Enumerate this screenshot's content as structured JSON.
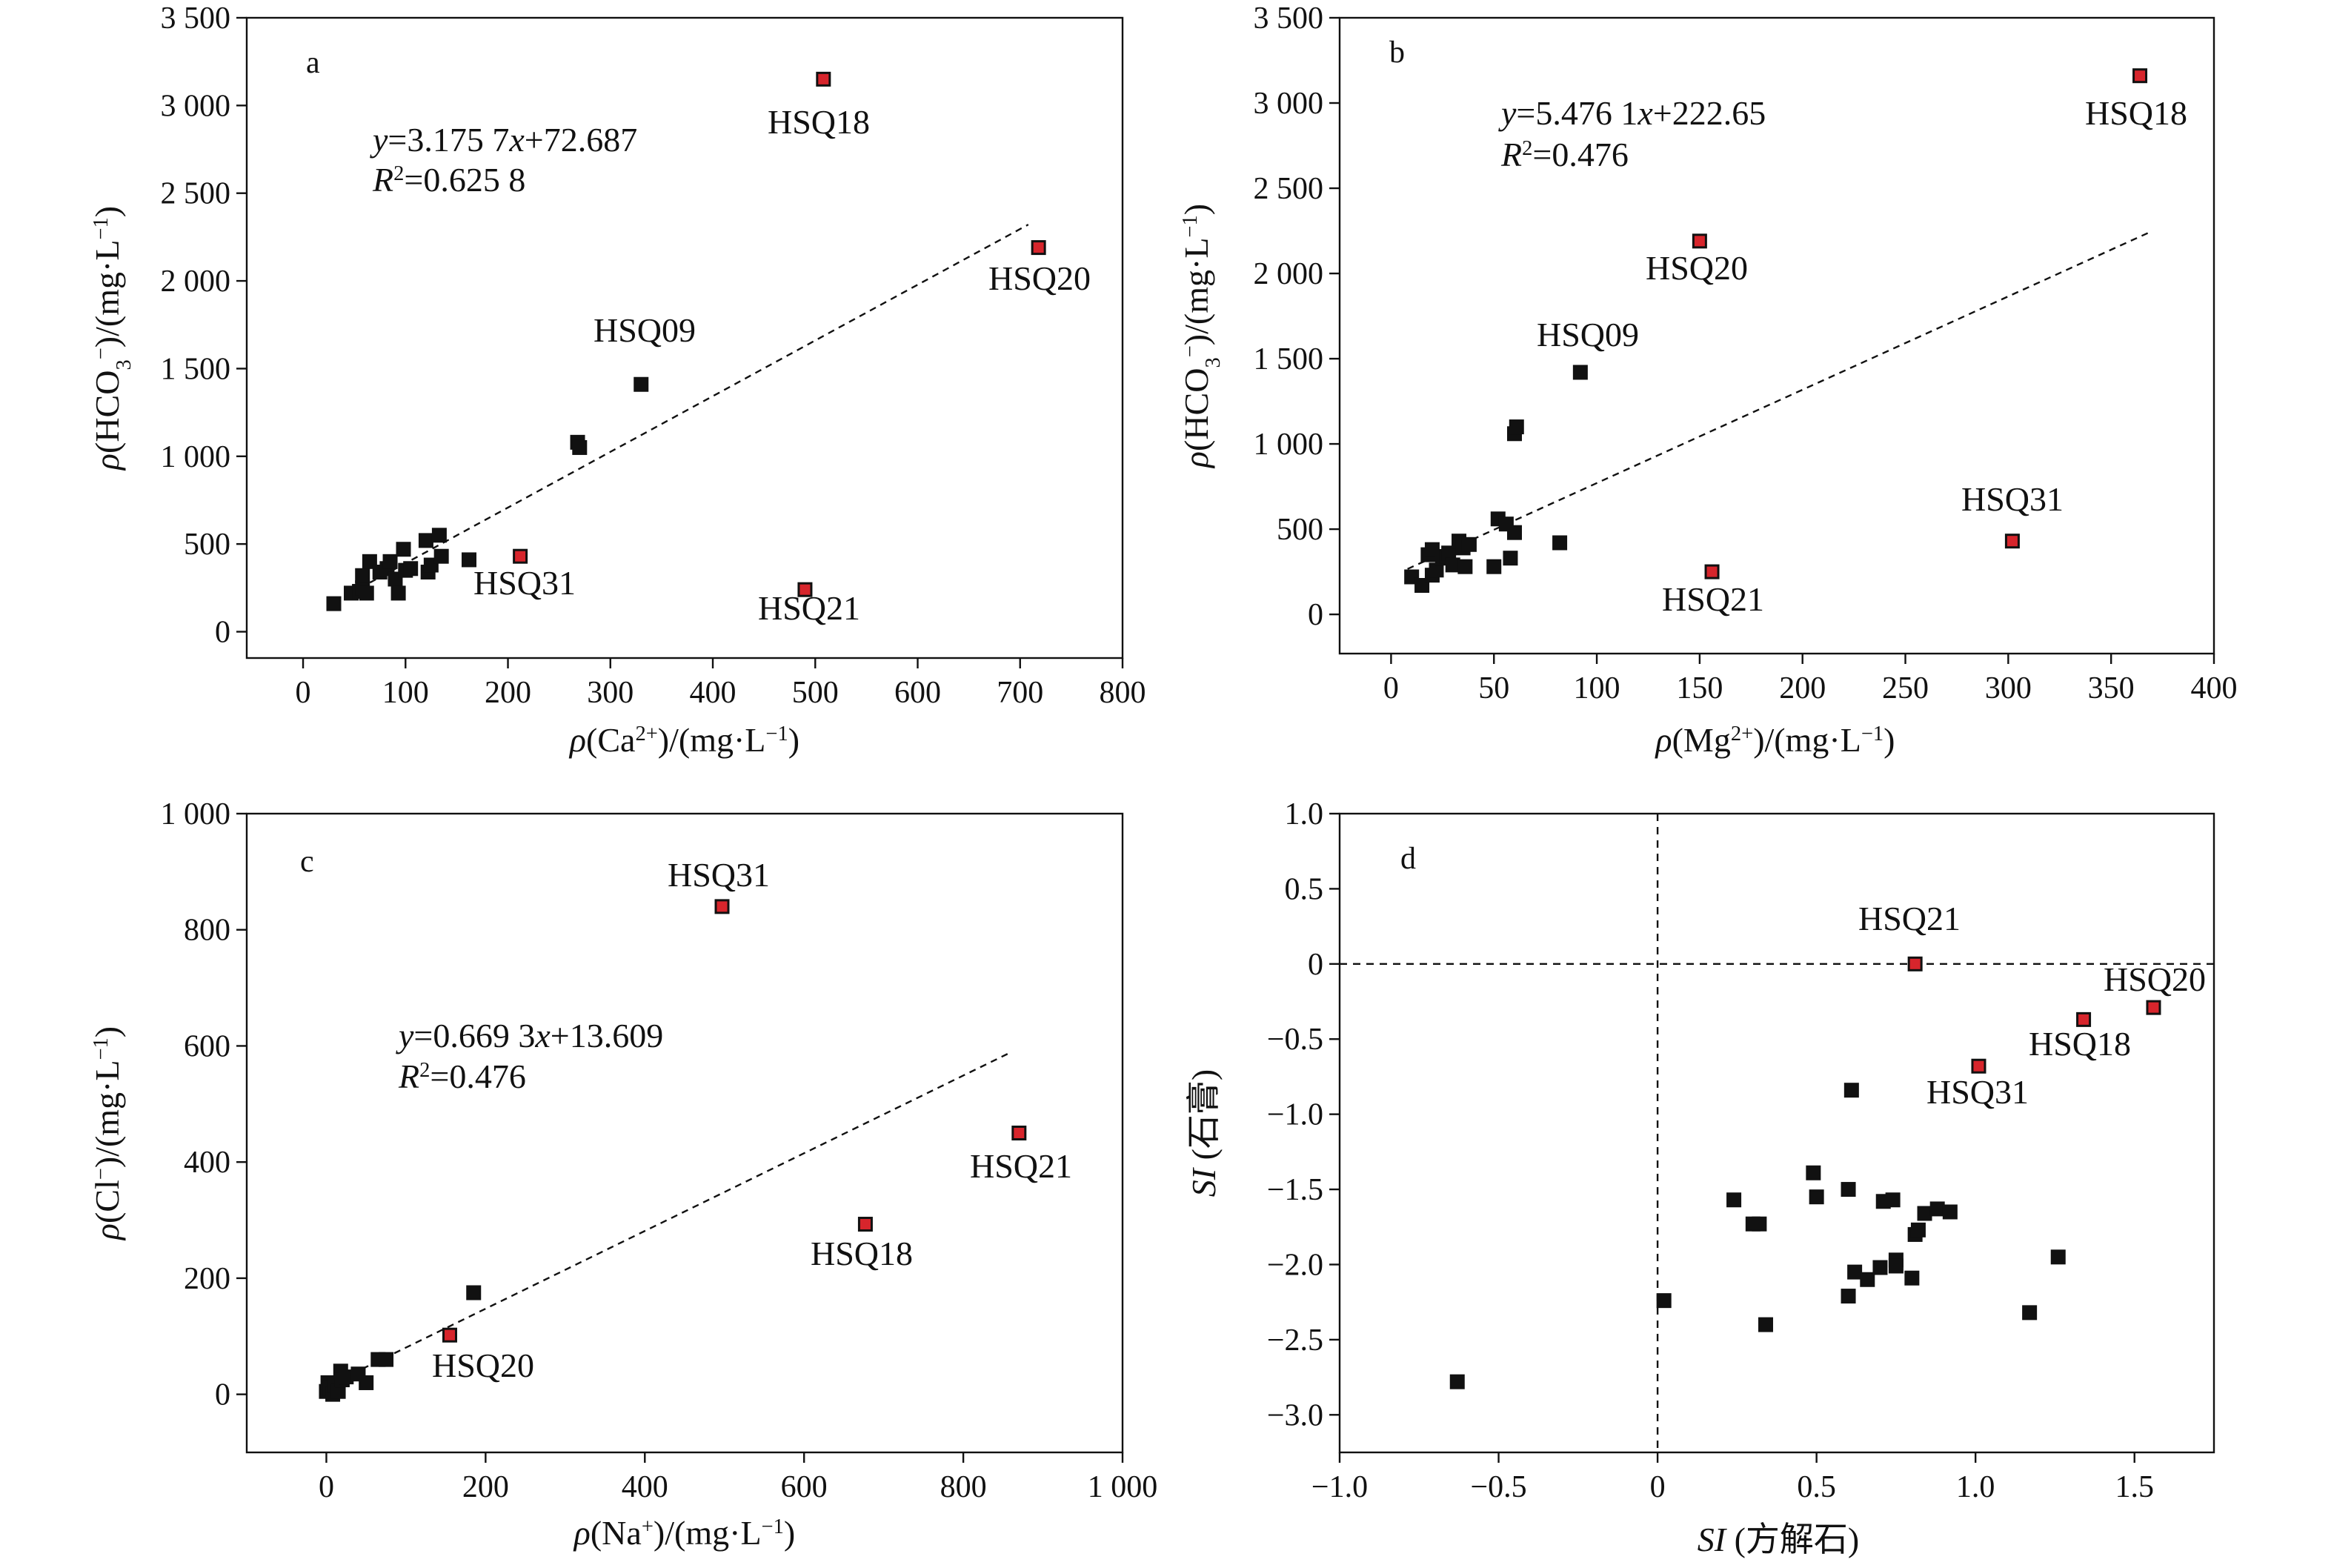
{
  "chart_data": [
    {
      "type": "scatter",
      "panel": "a",
      "xlabel_parts": [
        {
          "t": "ρ",
          "i": true
        },
        {
          "t": "(Ca"
        },
        {
          "t": "2+",
          "sup": true
        },
        {
          "t": ")/(mg·L"
        },
        {
          "t": "−1",
          "sup": true
        },
        {
          "t": ")"
        }
      ],
      "ylabel_parts": [
        {
          "t": "ρ",
          "i": true
        },
        {
          "t": "(HCO"
        },
        {
          "t": "3",
          "sub": true
        },
        {
          "t": "−",
          "sup": true
        },
        {
          "t": ")/(mg·L"
        },
        {
          "t": "−1",
          "sup": true
        },
        {
          "t": ")"
        }
      ],
      "xlim": [
        -55,
        800
      ],
      "ylim": [
        -150,
        3500
      ],
      "xticks": [
        0,
        100,
        200,
        300,
        400,
        500,
        600,
        700,
        800
      ],
      "xticklabels": [
        "0",
        "100",
        "200",
        "300",
        "400",
        "500",
        "600",
        "700",
        "800"
      ],
      "yticks": [
        0,
        500,
        1000,
        1500,
        2000,
        2500,
        3000,
        3500
      ],
      "yticklabels": [
        "0",
        "500",
        "1 000",
        "1 500",
        "2 000",
        "2 500",
        "3 000",
        "3 500"
      ],
      "equation_parts": [
        {
          "t": "y",
          "i": true
        },
        {
          "t": "=3.175 7"
        },
        {
          "t": "x",
          "i": true
        },
        {
          "t": "+72.687"
        }
      ],
      "r2_parts": [
        {
          "t": "R",
          "i": true
        },
        {
          "t": "2",
          "sup": true
        },
        {
          "t": "=0.625 8"
        }
      ],
      "fit": {
        "slope": 3.1757,
        "intercept": 72.687,
        "x_range": [
          45,
          708
        ]
      },
      "black_points": [
        [
          30,
          160
        ],
        [
          47,
          220
        ],
        [
          55,
          230
        ],
        [
          58,
          250
        ],
        [
          58,
          320
        ],
        [
          62,
          220
        ],
        [
          65,
          400
        ],
        [
          75,
          340
        ],
        [
          82,
          360
        ],
        [
          85,
          400
        ],
        [
          90,
          300
        ],
        [
          93,
          220
        ],
        [
          98,
          470
        ],
        [
          100,
          350
        ],
        [
          105,
          360
        ],
        [
          120,
          520
        ],
        [
          122,
          340
        ],
        [
          125,
          380
        ],
        [
          133,
          550
        ],
        [
          135,
          430
        ],
        [
          162,
          410
        ],
        [
          268,
          1080
        ],
        [
          270,
          1050
        ],
        [
          330,
          1410
        ]
      ],
      "red_points": [
        {
          "label": "HSQ18",
          "x": 508,
          "y": 3150
        },
        {
          "label": "HSQ20",
          "x": 718,
          "y": 2190
        },
        {
          "label": "HSQ31",
          "x": 212,
          "y": 430
        },
        {
          "label": "HSQ21",
          "x": 490,
          "y": 240
        }
      ],
      "black_labels": [
        {
          "label": "HSQ09",
          "x": 330,
          "y": 1410
        }
      ]
    },
    {
      "type": "scatter",
      "panel": "b",
      "xlabel_parts": [
        {
          "t": "ρ",
          "i": true
        },
        {
          "t": "(Mg"
        },
        {
          "t": "2+",
          "sup": true
        },
        {
          "t": ")/(mg·L"
        },
        {
          "t": "−1",
          "sup": true
        },
        {
          "t": ")"
        }
      ],
      "ylabel_parts": [
        {
          "t": "ρ",
          "i": true
        },
        {
          "t": "(HCO"
        },
        {
          "t": "3",
          "sub": true
        },
        {
          "t": "−",
          "sup": true
        },
        {
          "t": ")/(mg·L"
        },
        {
          "t": "−1",
          "sup": true
        },
        {
          "t": ")"
        }
      ],
      "xlim": [
        -25,
        400
      ],
      "ylim": [
        -230,
        3500
      ],
      "xticks": [
        0,
        50,
        100,
        150,
        200,
        250,
        300,
        350,
        400
      ],
      "xticklabels": [
        "0",
        "50",
        "100",
        "150",
        "200",
        "250",
        "300",
        "350",
        "400"
      ],
      "yticks": [
        0,
        500,
        1000,
        1500,
        2000,
        2500,
        3000,
        3500
      ],
      "yticklabels": [
        "0",
        "500",
        "1 000",
        "1 500",
        "2 000",
        "2 500",
        "3 000",
        "3 500"
      ],
      "equation_parts": [
        {
          "t": "y",
          "i": true
        },
        {
          "t": "=5.476 1"
        },
        {
          "t": "x",
          "i": true
        },
        {
          "t": "+222.65"
        }
      ],
      "r2_parts": [
        {
          "t": "R",
          "i": true
        },
        {
          "t": "2",
          "sup": true
        },
        {
          "t": "=0.476"
        }
      ],
      "fit": {
        "slope": 5.4761,
        "intercept": 222.65,
        "x_range": [
          8,
          370
        ]
      },
      "black_points": [
        [
          10,
          220
        ],
        [
          15,
          170
        ],
        [
          18,
          350
        ],
        [
          20,
          230
        ],
        [
          20,
          380
        ],
        [
          22,
          260
        ],
        [
          25,
          330
        ],
        [
          27,
          340
        ],
        [
          28,
          360
        ],
        [
          30,
          290
        ],
        [
          33,
          430
        ],
        [
          35,
          390
        ],
        [
          36,
          280
        ],
        [
          38,
          410
        ],
        [
          50,
          280
        ],
        [
          52,
          560
        ],
        [
          56,
          530
        ],
        [
          58,
          330
        ],
        [
          60,
          480
        ],
        [
          60,
          1060
        ],
        [
          61,
          1100
        ],
        [
          82,
          420
        ],
        [
          92,
          1420
        ]
      ],
      "red_points": [
        {
          "label": "HSQ18",
          "x": 364,
          "y": 3160
        },
        {
          "label": "HSQ20",
          "x": 150,
          "y": 2190
        },
        {
          "label": "HSQ31",
          "x": 302,
          "y": 430
        },
        {
          "label": "HSQ21",
          "x": 156,
          "y": 250
        }
      ],
      "black_labels": [
        {
          "label": "HSQ09",
          "x": 92,
          "y": 1420
        }
      ]
    },
    {
      "type": "scatter",
      "panel": "c",
      "xlabel_parts": [
        {
          "t": "ρ",
          "i": true
        },
        {
          "t": "(Na"
        },
        {
          "t": "+",
          "sup": true
        },
        {
          "t": ")/(mg·L"
        },
        {
          "t": "−1",
          "sup": true
        },
        {
          "t": ")"
        }
      ],
      "ylabel_parts": [
        {
          "t": "ρ",
          "i": true
        },
        {
          "t": "(Cl"
        },
        {
          "t": "−",
          "sup": true
        },
        {
          "t": ")/(mg·L"
        },
        {
          "t": "−1",
          "sup": true
        },
        {
          "t": ")"
        }
      ],
      "xlim": [
        -100,
        1000
      ],
      "ylim": [
        -100,
        1000
      ],
      "xticks": [
        0,
        200,
        400,
        600,
        800,
        1000
      ],
      "xticklabels": [
        "0",
        "200",
        "400",
        "600",
        "800",
        "1 000"
      ],
      "yticks": [
        0,
        200,
        400,
        600,
        800,
        1000
      ],
      "yticklabels": [
        "0",
        "200",
        "400",
        "600",
        "800",
        "1 000"
      ],
      "equation_parts": [
        {
          "t": "y",
          "i": true
        },
        {
          "t": "=0.669 3"
        },
        {
          "t": "x",
          "i": true
        },
        {
          "t": "+13.609"
        }
      ],
      "r2_parts": [
        {
          "t": "R",
          "i": true
        },
        {
          "t": "2",
          "sup": true
        },
        {
          "t": "=0.476"
        }
      ],
      "fit": {
        "slope": 0.6693,
        "intercept": 13.609,
        "x_range": [
          5,
          858
        ]
      },
      "black_points": [
        [
          0,
          5
        ],
        [
          2,
          20
        ],
        [
          5,
          10
        ],
        [
          8,
          0
        ],
        [
          10,
          15
        ],
        [
          15,
          5
        ],
        [
          18,
          40
        ],
        [
          20,
          25
        ],
        [
          25,
          30
        ],
        [
          40,
          35
        ],
        [
          50,
          20
        ],
        [
          65,
          60
        ],
        [
          75,
          60
        ],
        [
          185,
          175
        ]
      ],
      "red_points": [
        {
          "label": "HSQ31",
          "x": 497,
          "y": 840
        },
        {
          "label": "HSQ21",
          "x": 870,
          "y": 450
        },
        {
          "label": "HSQ18",
          "x": 677,
          "y": 293
        },
        {
          "label": "HSQ20",
          "x": 155,
          "y": 102
        }
      ],
      "black_labels": []
    },
    {
      "type": "scatter",
      "panel": "d",
      "xlabel_parts": [
        {
          "t": "SI",
          "i": true
        },
        {
          "t": " (方解石)"
        }
      ],
      "ylabel_parts": [
        {
          "t": "SI",
          "i": true
        },
        {
          "t": " (石膏)"
        }
      ],
      "xlim": [
        -1.0,
        1.75
      ],
      "ylim": [
        -3.25,
        1.0
      ],
      "xticks": [
        -1.0,
        -0.5,
        0,
        0.5,
        1.0,
        1.5
      ],
      "xticklabels": [
        "−1.0",
        "−0.5",
        "0",
        "0.5",
        "1.0",
        "1.5"
      ],
      "yticks": [
        -3.0,
        -2.5,
        -2.0,
        -1.5,
        -1.0,
        -0.5,
        0,
        0.5,
        1.0
      ],
      "yticklabels": [
        "−3.0",
        "−2.5",
        "−2.0",
        "−1.5",
        "−1.0",
        "−0.5",
        "0",
        "0.5",
        "1.0"
      ],
      "reference_lines": {
        "x": 0,
        "y": 0
      },
      "black_points": [
        [
          -0.63,
          -2.78
        ],
        [
          0.02,
          -2.24
        ],
        [
          0.24,
          -1.57
        ],
        [
          0.3,
          -1.73
        ],
        [
          0.32,
          -1.73
        ],
        [
          0.34,
          -2.4
        ],
        [
          0.49,
          -1.39
        ],
        [
          0.5,
          -1.55
        ],
        [
          0.6,
          -1.5
        ],
        [
          0.6,
          -2.21
        ],
        [
          0.61,
          -0.84
        ],
        [
          0.62,
          -2.05
        ],
        [
          0.66,
          -2.1
        ],
        [
          0.7,
          -2.02
        ],
        [
          0.71,
          -1.58
        ],
        [
          0.74,
          -1.57
        ],
        [
          0.75,
          -1.97
        ],
        [
          0.75,
          -2.01
        ],
        [
          0.8,
          -2.09
        ],
        [
          0.81,
          -1.8
        ],
        [
          0.82,
          -1.77
        ],
        [
          0.84,
          -1.66
        ],
        [
          0.88,
          -1.63
        ],
        [
          0.92,
          -1.65
        ],
        [
          1.17,
          -2.32
        ],
        [
          1.26,
          -1.95
        ]
      ],
      "red_points": [
        {
          "label": "HSQ21",
          "x": 0.81,
          "y": 0.0
        },
        {
          "label": "HSQ20",
          "x": 1.56,
          "y": -0.29
        },
        {
          "label": "HSQ18",
          "x": 1.34,
          "y": -0.37
        },
        {
          "label": "HSQ31",
          "x": 1.01,
          "y": -0.68
        }
      ],
      "black_labels": []
    }
  ]
}
